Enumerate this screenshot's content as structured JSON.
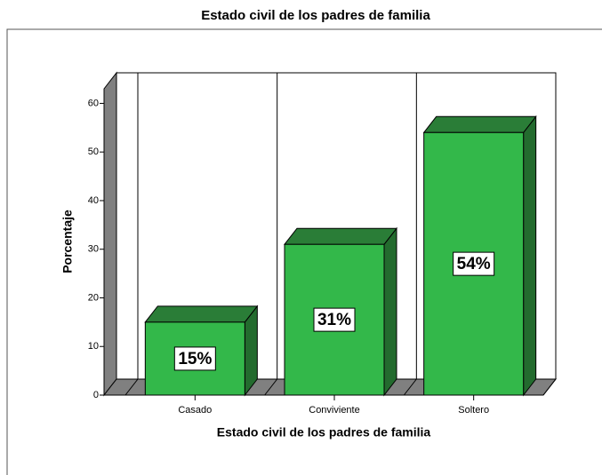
{
  "chart_data": {
    "type": "bar3d",
    "title": "Estado civil de los padres de familia",
    "x_label": "Estado civil de los padres de familia",
    "y_label": "Porcentaje",
    "categories": [
      "Casado",
      "Conviviente",
      "Soltero"
    ],
    "values": [
      15,
      31,
      54
    ],
    "value_labels": [
      "15%",
      "31%",
      "54%"
    ],
    "color": "#33b84a",
    "ylim": [
      0,
      63
    ],
    "yticks": [
      0,
      10,
      20,
      30,
      40,
      50,
      60
    ],
    "grid": false
  }
}
